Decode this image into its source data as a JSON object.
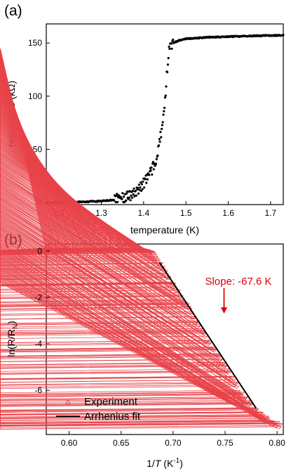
{
  "colors": {
    "experiment": "#e8434a",
    "fit": "#000000",
    "annotation": "#e00000",
    "points_a": "#000000"
  },
  "chart_data": [
    {
      "type": "scatter",
      "panel_label": "(a)",
      "xlabel": "temperature (K)",
      "ylabel": "resistance (kΩ)",
      "xlim": [
        1.17,
        1.73
      ],
      "ylim": [
        -2,
        168
      ],
      "xticks": [
        1.2,
        1.3,
        1.4,
        1.5,
        1.6,
        1.7
      ],
      "xtick_labels": [
        "1.2",
        "1.3",
        "1.4",
        "1.5",
        "1.6",
        "1.7"
      ],
      "yticks": [
        0,
        50,
        100,
        150
      ],
      "ytick_labels": [
        "0",
        "50",
        "100",
        "150"
      ],
      "grid": false,
      "series": [
        {
          "x": [
            1.17,
            1.2,
            1.25,
            1.3,
            1.33,
            1.35,
            1.37,
            1.38,
            1.39,
            1.4,
            1.41,
            1.415,
            1.42,
            1.425,
            1.43,
            1.435,
            1.44,
            1.445,
            1.45,
            1.455,
            1.46,
            1.465,
            1.47,
            1.475,
            1.48,
            1.49,
            1.5,
            1.55,
            1.6,
            1.65,
            1.7,
            1.73
          ],
          "y": [
            0.2,
            0.3,
            0.6,
            1.2,
            2.5,
            4,
            7,
            10,
            14,
            18,
            24,
            27,
            31,
            35,
            42,
            50,
            62,
            75,
            92,
            120,
            143,
            148,
            150,
            151,
            152,
            153,
            154,
            155.3,
            156,
            156.6,
            157.1,
            157.3
          ]
        }
      ]
    },
    {
      "type": "scatter",
      "panel_label": "(b)",
      "xlabel_prefix": "1/",
      "xlabel_var": "T",
      "xlabel_unit": " (K",
      "xlabel_sup": "-1",
      "xlabel_close": ")",
      "ylabel_text": "ln(R/R",
      "ylabel_sub": "N",
      "ylabel_close": ")",
      "xlim": [
        0.578,
        0.806
      ],
      "ylim": [
        -7.9,
        0.3
      ],
      "xticks": [
        0.6,
        0.65,
        0.7,
        0.75,
        0.8
      ],
      "xtick_labels": [
        "0.60",
        "0.65",
        "0.70",
        "0.75",
        "0.80"
      ],
      "yticks": [
        0,
        -2,
        -4,
        -6
      ],
      "ytick_labels": [
        "0",
        "-2",
        "-4",
        "-6"
      ],
      "grid": false,
      "series": [
        {
          "name": "Experiment",
          "marker": "triangle-open",
          "x": [
            0.58,
            0.6,
            0.62,
            0.64,
            0.66,
            0.675,
            0.683,
            0.69,
            0.7,
            0.71,
            0.72,
            0.73,
            0.74,
            0.75,
            0.76,
            0.77,
            0.78,
            0.79,
            0.8,
            0.805
          ],
          "y": [
            0,
            0,
            0,
            0,
            0,
            -0.02,
            -0.15,
            -0.7,
            -1.4,
            -2.1,
            -2.8,
            -3.6,
            -4.3,
            -5.0,
            -5.7,
            -6.4,
            -6.9,
            -7.3,
            -7.5,
            -7.6
          ]
        },
        {
          "name": "Arrhenius fit",
          "x": [
            0.687,
            0.78
          ],
          "y": [
            -0.5,
            -6.78
          ]
        }
      ],
      "legend": {
        "position": "bottom-left",
        "entries": [
          "Experiment",
          "Arrhenius fit"
        ]
      },
      "annotation": {
        "text": "Slope: -67.6 K",
        "arrow_x": 0.749,
        "arrow_y_from": -1.6,
        "arrow_y_to": -2.7
      }
    }
  ]
}
